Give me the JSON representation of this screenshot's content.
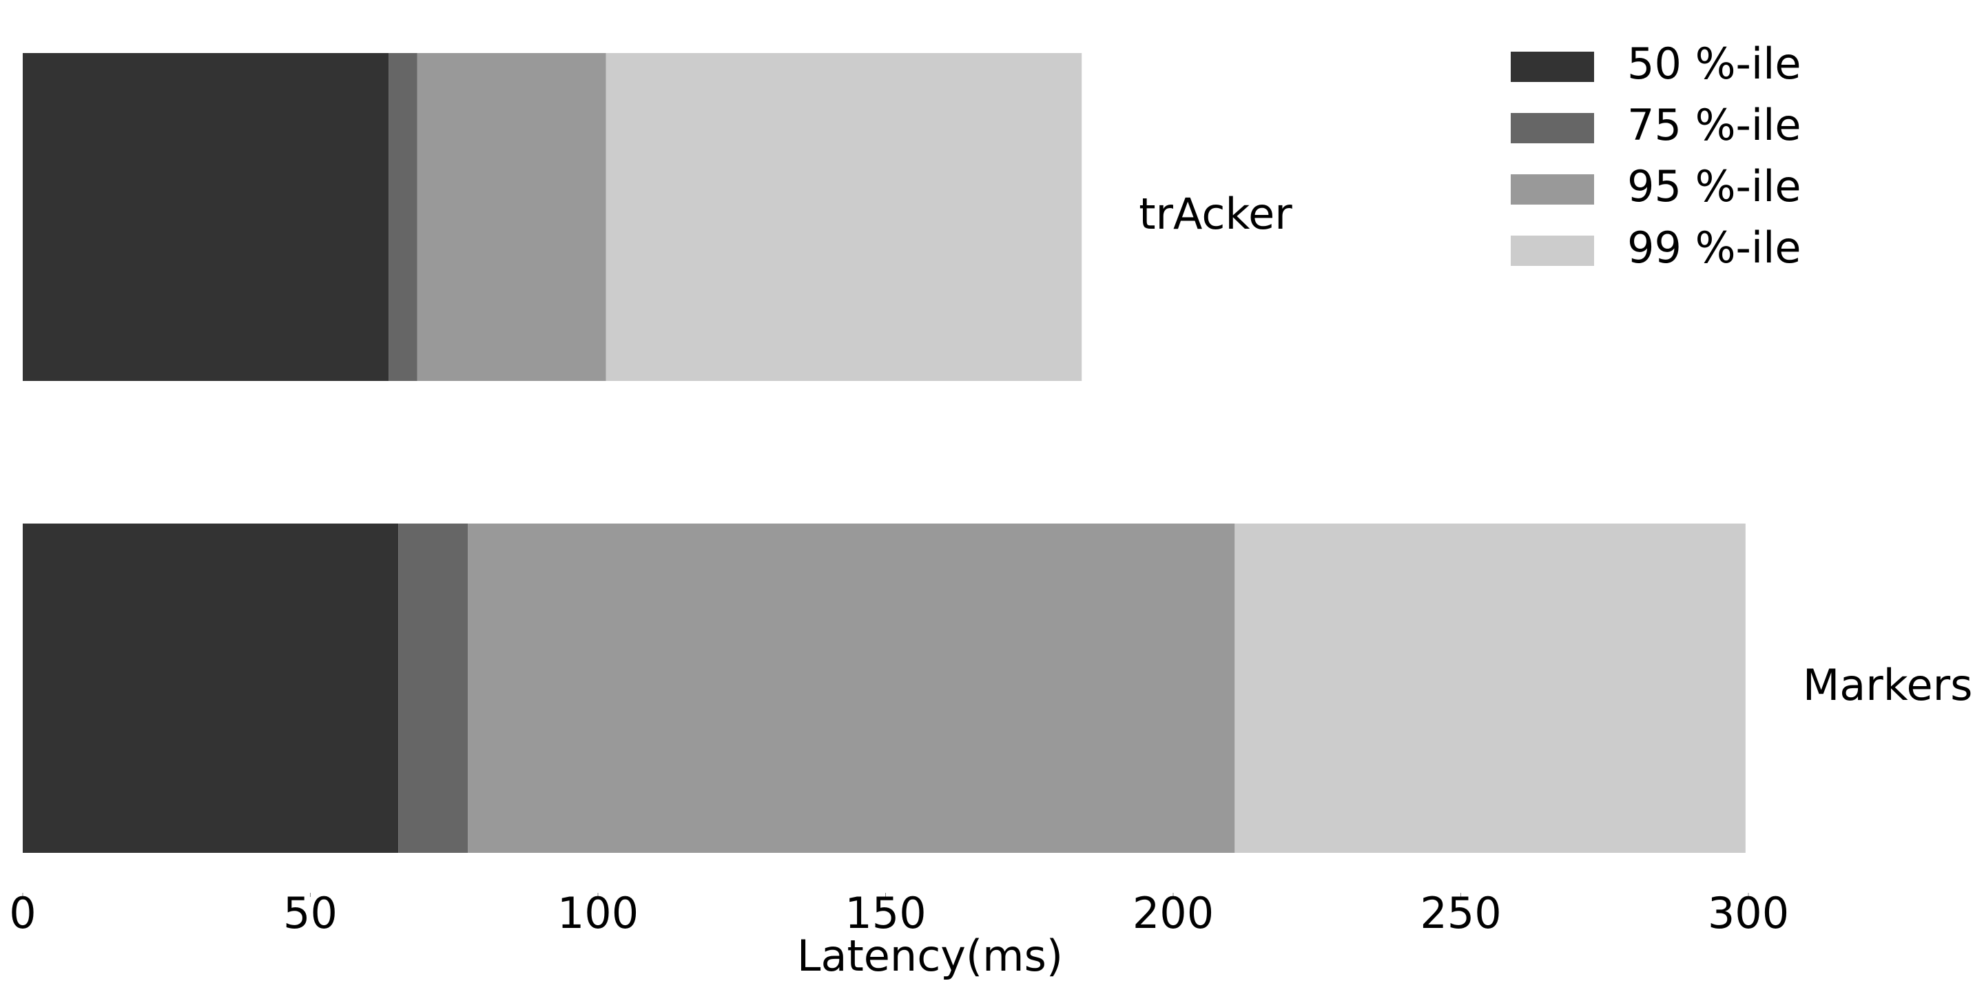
{
  "chart_data": {
    "type": "stacked-barh",
    "xlabel": "Latency(ms)",
    "categories": [
      "trAcker",
      "Markers"
    ],
    "series": [
      {
        "name": "50 %-ile",
        "color": "#333333",
        "values": [
          63.6,
          65.3
        ]
      },
      {
        "name": "75 %-ile",
        "color": "#666666",
        "values": [
          5.0,
          12.1
        ]
      },
      {
        "name": "95 %-ile",
        "color": "#999999",
        "values": [
          32.8,
          133.3
        ]
      },
      {
        "name": "99 %-ile",
        "color": "#cccccc",
        "values": [
          82.7,
          88.8
        ]
      }
    ],
    "xlim": [
      0,
      300
    ],
    "xticks": [
      0,
      50,
      100,
      150,
      200,
      250,
      300
    ],
    "grid": false,
    "legend": "upper right"
  }
}
